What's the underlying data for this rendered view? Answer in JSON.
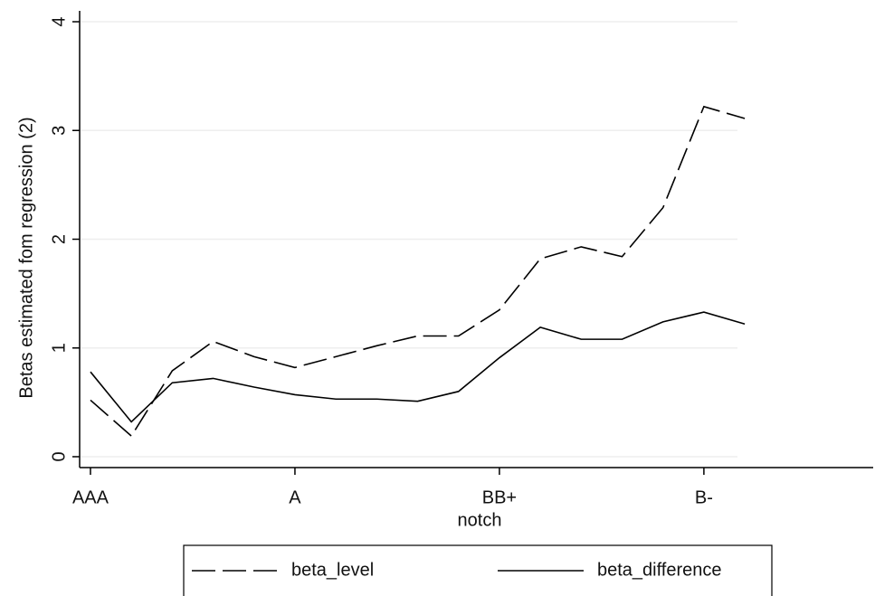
{
  "chart_data": {
    "type": "line",
    "x_label": "notch",
    "y_label": "Betas estimated fom  regression (2)",
    "x": [
      0,
      1,
      2,
      3,
      4,
      5,
      6,
      7,
      8,
      9,
      10,
      11,
      12,
      13,
      14,
      15,
      16
    ],
    "xlim": [
      -0.265,
      19.14
    ],
    "xticks": [
      {
        "value": 0,
        "label": "AAA"
      },
      {
        "value": 5,
        "label": "A"
      },
      {
        "value": 10,
        "label": "BB+"
      },
      {
        "value": 15,
        "label": "B-"
      }
    ],
    "ylim": [
      -0.1,
      4.1
    ],
    "yticks": [
      0,
      1,
      2,
      3,
      4
    ],
    "grid": true,
    "legend": "bottom",
    "series": [
      {
        "name": "beta_level",
        "color": "#000000",
        "linestyle": "dashed",
        "values": [
          0.52,
          0.19,
          0.79,
          1.06,
          0.92,
          0.82,
          0.92,
          1.02,
          1.11,
          1.11,
          1.35,
          1.82,
          1.93,
          1.84,
          2.29,
          3.22,
          3.11
        ]
      },
      {
        "name": "beta_difference",
        "color": "#000000",
        "linestyle": "solid",
        "values": [
          0.78,
          0.32,
          0.68,
          0.72,
          0.64,
          0.57,
          0.53,
          0.53,
          0.51,
          0.6,
          0.91,
          1.19,
          1.08,
          1.08,
          1.24,
          1.33,
          1.22
        ]
      }
    ]
  }
}
